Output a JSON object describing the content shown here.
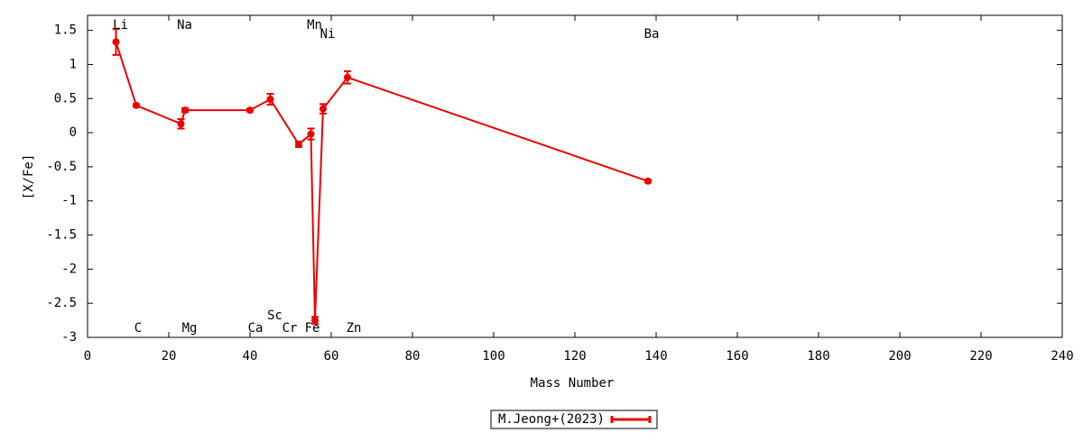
{
  "chart_data": {
    "type": "line",
    "xlabel": "Mass Number",
    "ylabel": "[X/Fe]",
    "x": [
      7,
      12,
      23,
      24,
      40,
      45,
      52,
      55,
      56,
      58,
      64,
      138
    ],
    "point_labels": [
      "Li",
      "C",
      "Na",
      "Mg",
      "Ca",
      "Sc",
      "Cr",
      "Mn",
      "Fe",
      "Ni",
      "Zn",
      "Ba"
    ],
    "series": [
      {
        "name": "M.Jeong+(2023)",
        "color": "#ee0000",
        "values": [
          1.33,
          0.4,
          0.13,
          0.33,
          0.33,
          0.49,
          -0.17,
          -0.02,
          -2.75,
          0.35,
          0.81,
          -0.71
        ],
        "errors": [
          0.19,
          0.02,
          0.07,
          0.03,
          0.02,
          0.08,
          0.04,
          0.08,
          0.05,
          0.07,
          0.09,
          0.02
        ]
      }
    ],
    "xlim": [
      0,
      240
    ],
    "xticks": [
      0,
      20,
      40,
      60,
      80,
      100,
      120,
      140,
      160,
      180,
      200,
      220,
      240
    ],
    "ylim": [
      -3,
      1.72
    ],
    "yticks": [
      -3,
      -2.5,
      -2,
      -1.5,
      -1,
      -0.5,
      0,
      0.5,
      1,
      1.5
    ],
    "grid": false,
    "legend": "bottom"
  }
}
